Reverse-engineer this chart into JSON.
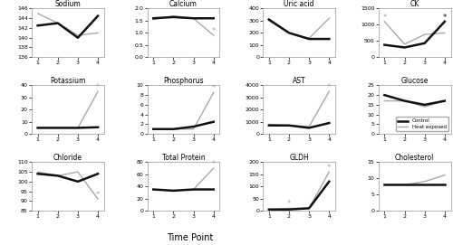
{
  "time_points": [
    1,
    2,
    3,
    4
  ],
  "subplots": [
    {
      "title": "Sodium",
      "ylim": [
        136,
        146
      ],
      "yticks": [
        136,
        138,
        140,
        142,
        144,
        146
      ],
      "control": [
        142.5,
        143,
        140,
        144.5
      ],
      "heat": [
        145,
        143,
        140.5,
        141
      ],
      "star_control": [],
      "star_heat": []
    },
    {
      "title": "Calcium",
      "ylim": [
        0,
        2
      ],
      "yticks": [
        0,
        0.5,
        1,
        1.5,
        2
      ],
      "control": [
        1.6,
        1.65,
        1.6,
        1.6
      ],
      "heat": [
        1.55,
        1.7,
        1.6,
        0.9
      ],
      "star_control": [],
      "star_heat": [
        4
      ]
    },
    {
      "title": "Uric acid",
      "ylim": [
        0,
        400
      ],
      "yticks": [
        0,
        100,
        200,
        300,
        400
      ],
      "control": [
        310,
        200,
        150,
        150
      ],
      "heat": [
        300,
        200,
        155,
        320
      ],
      "star_control": [],
      "star_heat": []
    },
    {
      "title": "CK",
      "ylim": [
        0,
        1500
      ],
      "yticks": [
        0,
        500,
        1000,
        1500
      ],
      "control": [
        380,
        300,
        430,
        1100
      ],
      "heat": [
        1100,
        400,
        700,
        750
      ],
      "star_control": [
        4
      ],
      "star_heat": [
        1
      ]
    },
    {
      "title": "Potassium",
      "ylim": [
        0,
        40
      ],
      "yticks": [
        0,
        10,
        20,
        30,
        40
      ],
      "control": [
        5,
        5,
        5,
        5.5
      ],
      "heat": [
        5,
        5,
        5,
        35
      ],
      "star_control": [],
      "star_heat": [
        4
      ]
    },
    {
      "title": "Phosphorus",
      "ylim": [
        0,
        10
      ],
      "yticks": [
        0,
        2,
        4,
        6,
        8,
        10
      ],
      "control": [
        1.0,
        1.0,
        1.5,
        2.5
      ],
      "heat": [
        1.0,
        1.0,
        1.0,
        8.5
      ],
      "star_control": [],
      "star_heat": [
        4
      ]
    },
    {
      "title": "AST",
      "ylim": [
        0,
        4000
      ],
      "yticks": [
        0,
        1000,
        2000,
        3000,
        4000
      ],
      "control": [
        700,
        700,
        500,
        900
      ],
      "heat": [
        800,
        700,
        600,
        3500
      ],
      "star_control": [],
      "star_heat": [
        4
      ]
    },
    {
      "title": "Glucose",
      "ylim": [
        0,
        25
      ],
      "yticks": [
        0,
        5,
        10,
        15,
        20,
        25
      ],
      "control": [
        20,
        17,
        15,
        17
      ],
      "heat": [
        17,
        17,
        14,
        17
      ],
      "star_control": [],
      "star_heat": [],
      "has_legend": true
    },
    {
      "title": "Chloride",
      "ylim": [
        85,
        110
      ],
      "yticks": [
        85,
        90,
        95,
        100,
        105,
        110
      ],
      "control": [
        104,
        103,
        100,
        104
      ],
      "heat": [
        105,
        103,
        105,
        91
      ],
      "star_control": [],
      "star_heat": [
        4
      ]
    },
    {
      "title": "Total Protein",
      "ylim": [
        0,
        80
      ],
      "yticks": [
        0,
        20,
        40,
        60,
        80
      ],
      "control": [
        35,
        33,
        35,
        35
      ],
      "heat": [
        35,
        33,
        35,
        70
      ],
      "star_control": [],
      "star_heat": [
        4
      ]
    },
    {
      "title": "GLDH",
      "ylim": [
        0,
        200
      ],
      "yticks": [
        0,
        50,
        100,
        150,
        200
      ],
      "control": [
        5,
        5,
        10,
        120
      ],
      "heat": [
        5,
        10,
        10,
        160
      ],
      "star_control": [],
      "star_heat": [
        2,
        4
      ]
    },
    {
      "title": "Cholesterol",
      "ylim": [
        0,
        15
      ],
      "yticks": [
        0,
        5,
        10,
        15
      ],
      "control": [
        8,
        8,
        8,
        8
      ],
      "heat": [
        8,
        8,
        9,
        11
      ],
      "star_control": [],
      "star_heat": []
    }
  ],
  "control_color": "#111111",
  "heat_color": "#aaaaaa",
  "control_lw": 1.8,
  "heat_lw": 1.0,
  "xlabel": "Time Point",
  "legend_labels": [
    "Control",
    "Heat exposed"
  ],
  "fig_bg": "#ffffff",
  "star_marker": "*",
  "star_size": 4
}
